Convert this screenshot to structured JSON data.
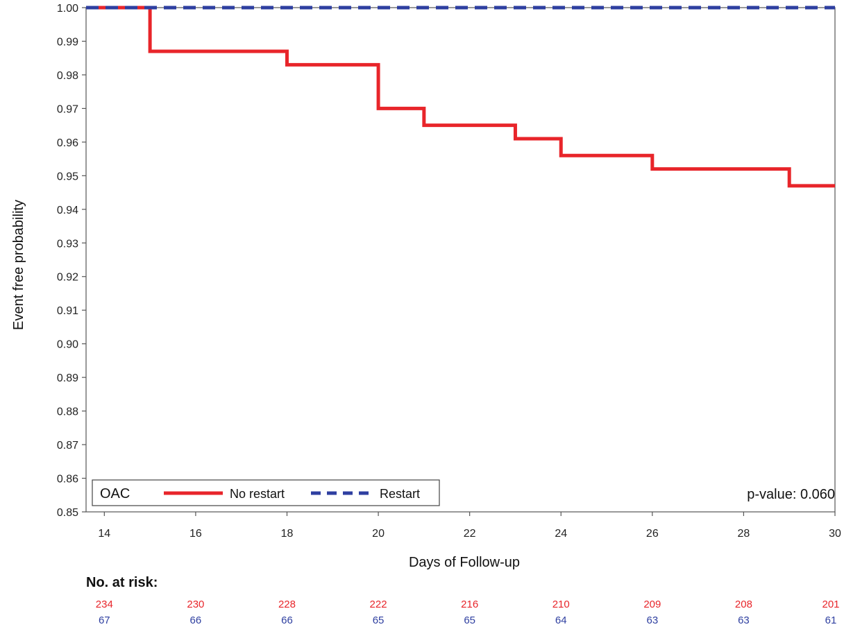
{
  "colors": {
    "no_restart": "#e8252a",
    "restart": "#2e3fa0"
  },
  "chart_data": {
    "type": "line",
    "ylabel": "Event free probability",
    "xlabel": "Days of Follow-up",
    "xlim": [
      13.6,
      30
    ],
    "ylim": [
      0.85,
      1.0
    ],
    "x_ticks": [
      14,
      16,
      18,
      20,
      22,
      24,
      26,
      28,
      30
    ],
    "x_tick_labels": [
      "14",
      "16",
      "18",
      "20",
      "22",
      "24",
      "26",
      "28",
      "30"
    ],
    "y_ticks": [
      0.85,
      0.86,
      0.87,
      0.88,
      0.89,
      0.9,
      0.91,
      0.92,
      0.93,
      0.94,
      0.95,
      0.96,
      0.97,
      0.98,
      0.99,
      1.0
    ],
    "y_tick_labels": [
      "0.85",
      "0.86",
      "0.87",
      "0.88",
      "0.89",
      "0.90",
      "0.91",
      "0.92",
      "0.93",
      "0.94",
      "0.95",
      "0.96",
      "0.97",
      "0.98",
      "0.99",
      "1.00"
    ],
    "legend": {
      "title": "OAC",
      "position": "bottom-left"
    },
    "series": [
      {
        "name": "No restart",
        "step": true,
        "style": "solid",
        "x": [
          13.6,
          15,
          18,
          20,
          21,
          23,
          24,
          26,
          29,
          30
        ],
        "y": [
          1.0,
          0.987,
          0.983,
          0.97,
          0.965,
          0.961,
          0.956,
          0.952,
          0.947,
          0.947
        ]
      },
      {
        "name": "Restart",
        "step": true,
        "style": "dashed",
        "x": [
          13.6,
          30
        ],
        "y": [
          1.0,
          1.0
        ]
      }
    ],
    "annotation": "p-value: 0.060",
    "risk_table": {
      "title": "No. at risk:",
      "x": [
        14,
        16,
        18,
        20,
        22,
        24,
        26,
        28,
        30
      ],
      "rows": [
        {
          "series": "No restart",
          "values": [
            "234",
            "230",
            "228",
            "222",
            "216",
            "210",
            "209",
            "208",
            "201"
          ]
        },
        {
          "series": "Restart",
          "values": [
            "67",
            "66",
            "66",
            "65",
            "65",
            "64",
            "63",
            "63",
            "61"
          ]
        }
      ]
    }
  }
}
